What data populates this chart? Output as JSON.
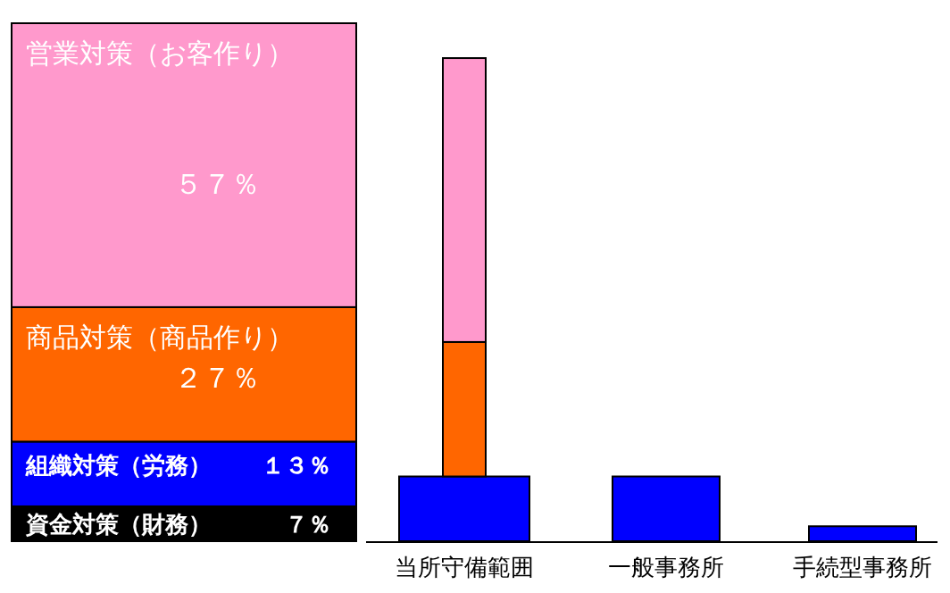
{
  "chart_data": {
    "type": "bar",
    "stacked": true,
    "categories": [
      null,
      "当所守備範囲",
      "一般事務所",
      "手続型事務所"
    ],
    "series": [
      {
        "name": "資金対策（財務）",
        "color": "#000000",
        "values": [
          7,
          null,
          null,
          null
        ],
        "value_labels": [
          "７％",
          null,
          null,
          null
        ]
      },
      {
        "name": "組織対策（労務）",
        "color": "#0000ff",
        "values": [
          13,
          13,
          13,
          3
        ],
        "value_labels": [
          "１３％",
          null,
          null,
          null
        ]
      },
      {
        "name": "商品対策（商品作り）",
        "color": "#ff6600",
        "values": [
          27,
          27,
          null,
          null
        ],
        "value_labels": [
          "２７％",
          null,
          null,
          null
        ]
      },
      {
        "name": "営業対策（お客作り）",
        "color": "#ff99cc",
        "values": [
          57,
          57,
          null,
          null
        ],
        "value_labels": [
          "５７％",
          null,
          null,
          null
        ]
      }
    ]
  }
}
